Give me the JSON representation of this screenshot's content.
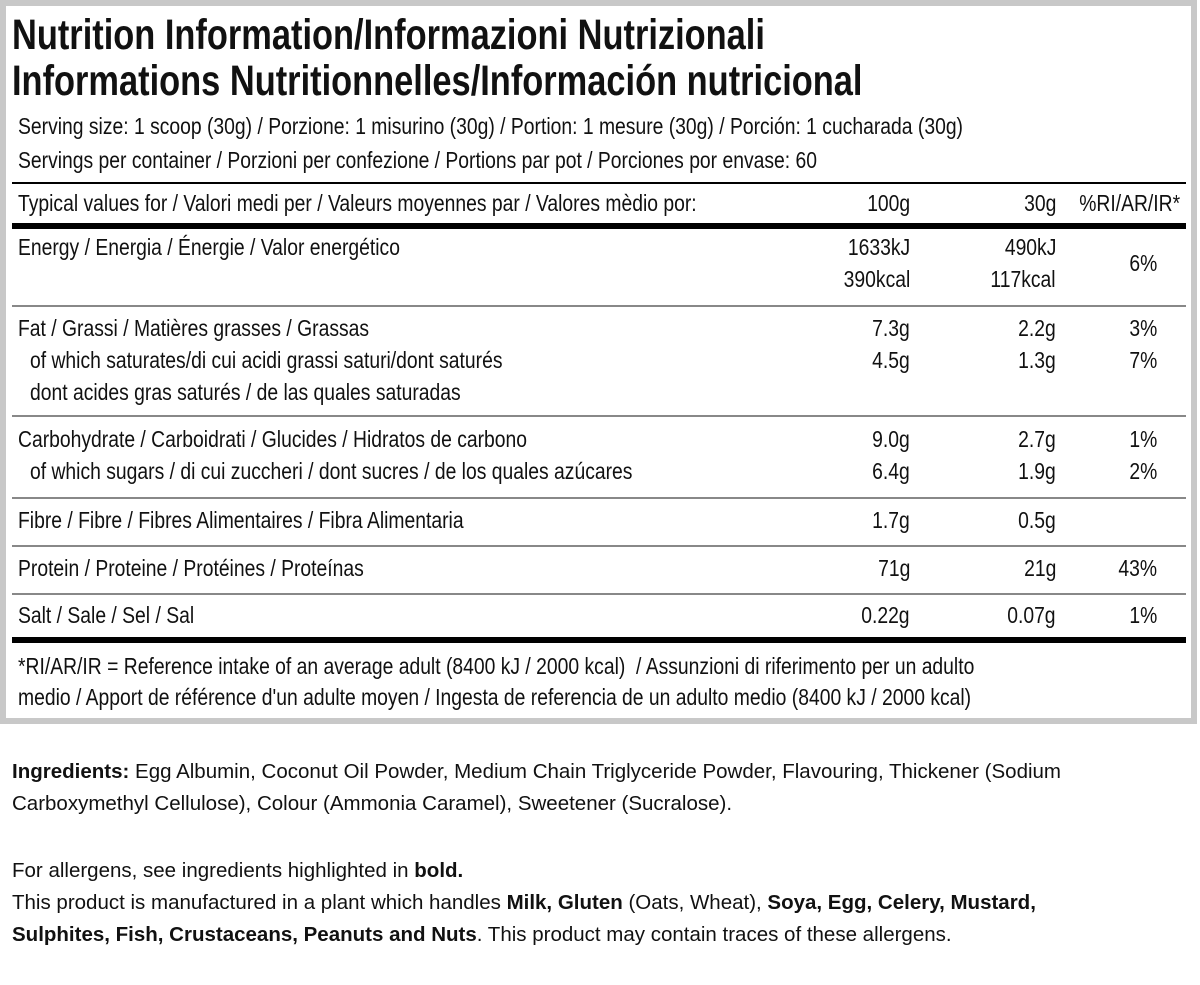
{
  "header": {
    "title_lines": [
      "Nutrition Information/Informazioni Nutrizionali",
      "Informations Nutritionnelles/Información nutricional"
    ],
    "serving_size": "Serving size: 1 scoop (30g) / Porzione: 1 misurino (30g) / Portion: 1 mesure (30g) / Porción: 1 cucharada (30g)",
    "servings_per_container": "Servings per container / Porzioni per confezione / Portions par pot / Porciones por envase: 60"
  },
  "table": {
    "columns": [
      "Typical values for / Valori medi per / Valeurs moyennes par / Valores mèdio por:",
      "100g",
      "30g",
      "%RI/AR/IR*"
    ],
    "groups": [
      {
        "label": [
          "Energy / Energia / Énergie / Valor energético"
        ],
        "per100": [
          "1633kJ",
          "390kcal"
        ],
        "per30": [
          "490kJ",
          "117kcal"
        ],
        "ri": [
          "6%"
        ]
      },
      {
        "label": [
          "Fat / Grassi / Matières grasses / Grassas",
          "of which saturates/di cui acidi grassi saturi/dont saturés",
          "dont acides gras saturés / de las quales saturadas"
        ],
        "per100": [
          "7.3g",
          "4.5g"
        ],
        "per30": [
          "2.2g",
          "1.3g"
        ],
        "ri": [
          "3%",
          "7%"
        ]
      },
      {
        "label": [
          "Carbohydrate / Carboidrati / Glucides / Hidratos de carbono",
          "of which sugars / di cui zuccheri / dont sucres / de los quales azúcares"
        ],
        "per100": [
          "9.0g",
          "6.4g"
        ],
        "per30": [
          "2.7g",
          "1.9g"
        ],
        "ri": [
          "1%",
          "2%"
        ]
      },
      {
        "label": [
          "Fibre / Fibre / Fibres Alimentaires / Fibra Alimentaria"
        ],
        "per100": [
          "1.7g"
        ],
        "per30": [
          "0.5g"
        ]
      },
      {
        "label": [
          "Protein / Proteine / Protéines / Proteínas"
        ],
        "per100": [
          "71g"
        ],
        "per30": [
          "21g"
        ],
        "ri": [
          "43%"
        ]
      },
      {
        "label": [
          "Salt / Sale / Sel / Sal"
        ],
        "per100": [
          "0.22g"
        ],
        "per30": [
          "0.07g"
        ],
        "ri": [
          "1%"
        ]
      }
    ]
  },
  "footnote_lines": [
    "*RI/AR/IR = Reference intake of an average adult (8400 kJ / 2000 kcal)  / Assunzioni di riferimento per un adulto",
    "medio / Apport de référence d'un adulte moyen / Ingesta de referencia de un adulto medio (8400 kJ / 2000 kcal)"
  ],
  "ingredients": {
    "label": "Ingredients:",
    "text": "Egg Albumin, Coconut Oil Powder, Medium Chain Triglyceride Powder, Flavouring, Thickener (Sodium Carboxymethyl Cellulose), Colour (Ammonia Caramel), Sweetener (Sucralose)."
  },
  "allergens": {
    "intro": [
      {
        "text": "For allergens, see ingredients highlighted in "
      },
      {
        "text": "bold.",
        "bold": true
      }
    ],
    "statement": [
      {
        "text": "This product is manufactured in a plant which handles "
      },
      {
        "text": "Milk, Gluten",
        "bold": true
      },
      {
        "text": " (Oats, Wheat), "
      },
      {
        "text": "Soya, Egg, Celery, Mustard, Sulphites, Fish, Crustaceans, Peanuts and Nuts",
        "bold": true
      },
      {
        "text": ". This product may contain traces of these allergens."
      }
    ]
  }
}
